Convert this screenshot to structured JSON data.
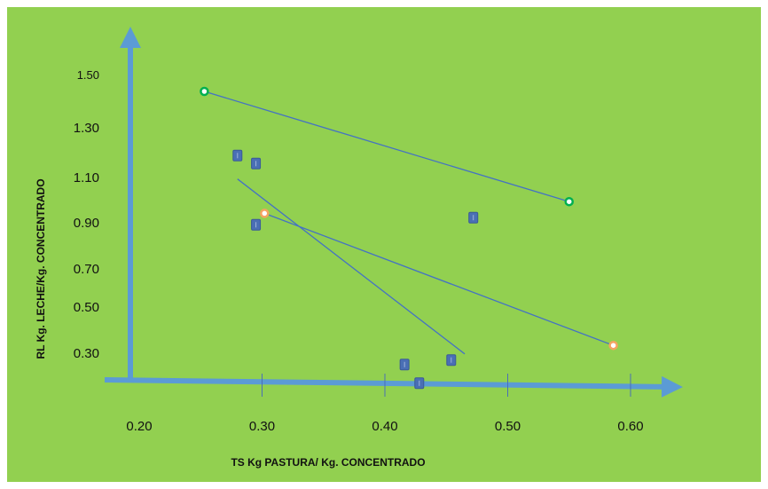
{
  "chart_data": {
    "type": "scatter",
    "title": "",
    "xlabel": "TS  Kg PASTURA/ Kg. CONCENTRADO",
    "ylabel": "RL  Kg. LECHE/Kg.  CONCENTRADO",
    "x_ticks": [
      "0.20",
      "0.30",
      "0.40",
      "0.50",
      "0.60"
    ],
    "y_ticks": [
      "1.50",
      "1.30",
      "1.10",
      "0.90",
      "0.70",
      "0.50",
      "0.30"
    ],
    "grid": false,
    "legend": "none",
    "series": [
      {
        "marker": "circle",
        "color": "#00b050",
        "points": [
          [
            0.253,
            1.426
          ],
          [
            0.55,
            1.012
          ]
        ],
        "trend": [
          [
            0.253,
            1.426
          ],
          [
            0.55,
            1.012
          ]
        ]
      },
      {
        "marker": "circle",
        "color": "#f4a460",
        "points": [
          [
            0.302,
            0.968
          ],
          [
            0.586,
            0.472
          ]
        ],
        "trend": [
          [
            0.302,
            0.968
          ],
          [
            0.586,
            0.472
          ]
        ]
      },
      {
        "marker": "square",
        "color": "#4a6fb5",
        "points": [
          [
            0.28,
            1.185
          ],
          [
            0.295,
            1.155
          ],
          [
            0.295,
            0.925
          ],
          [
            0.416,
            0.4
          ],
          [
            0.428,
            0.33
          ],
          [
            0.454,
            0.417
          ],
          [
            0.472,
            0.952
          ]
        ],
        "trend": [
          [
            0.28,
            1.097
          ],
          [
            0.465,
            0.44
          ]
        ]
      }
    ]
  },
  "colors": {
    "background": "#92d050",
    "axis": "#5b9bd5",
    "trend_line": "#4472c4"
  }
}
